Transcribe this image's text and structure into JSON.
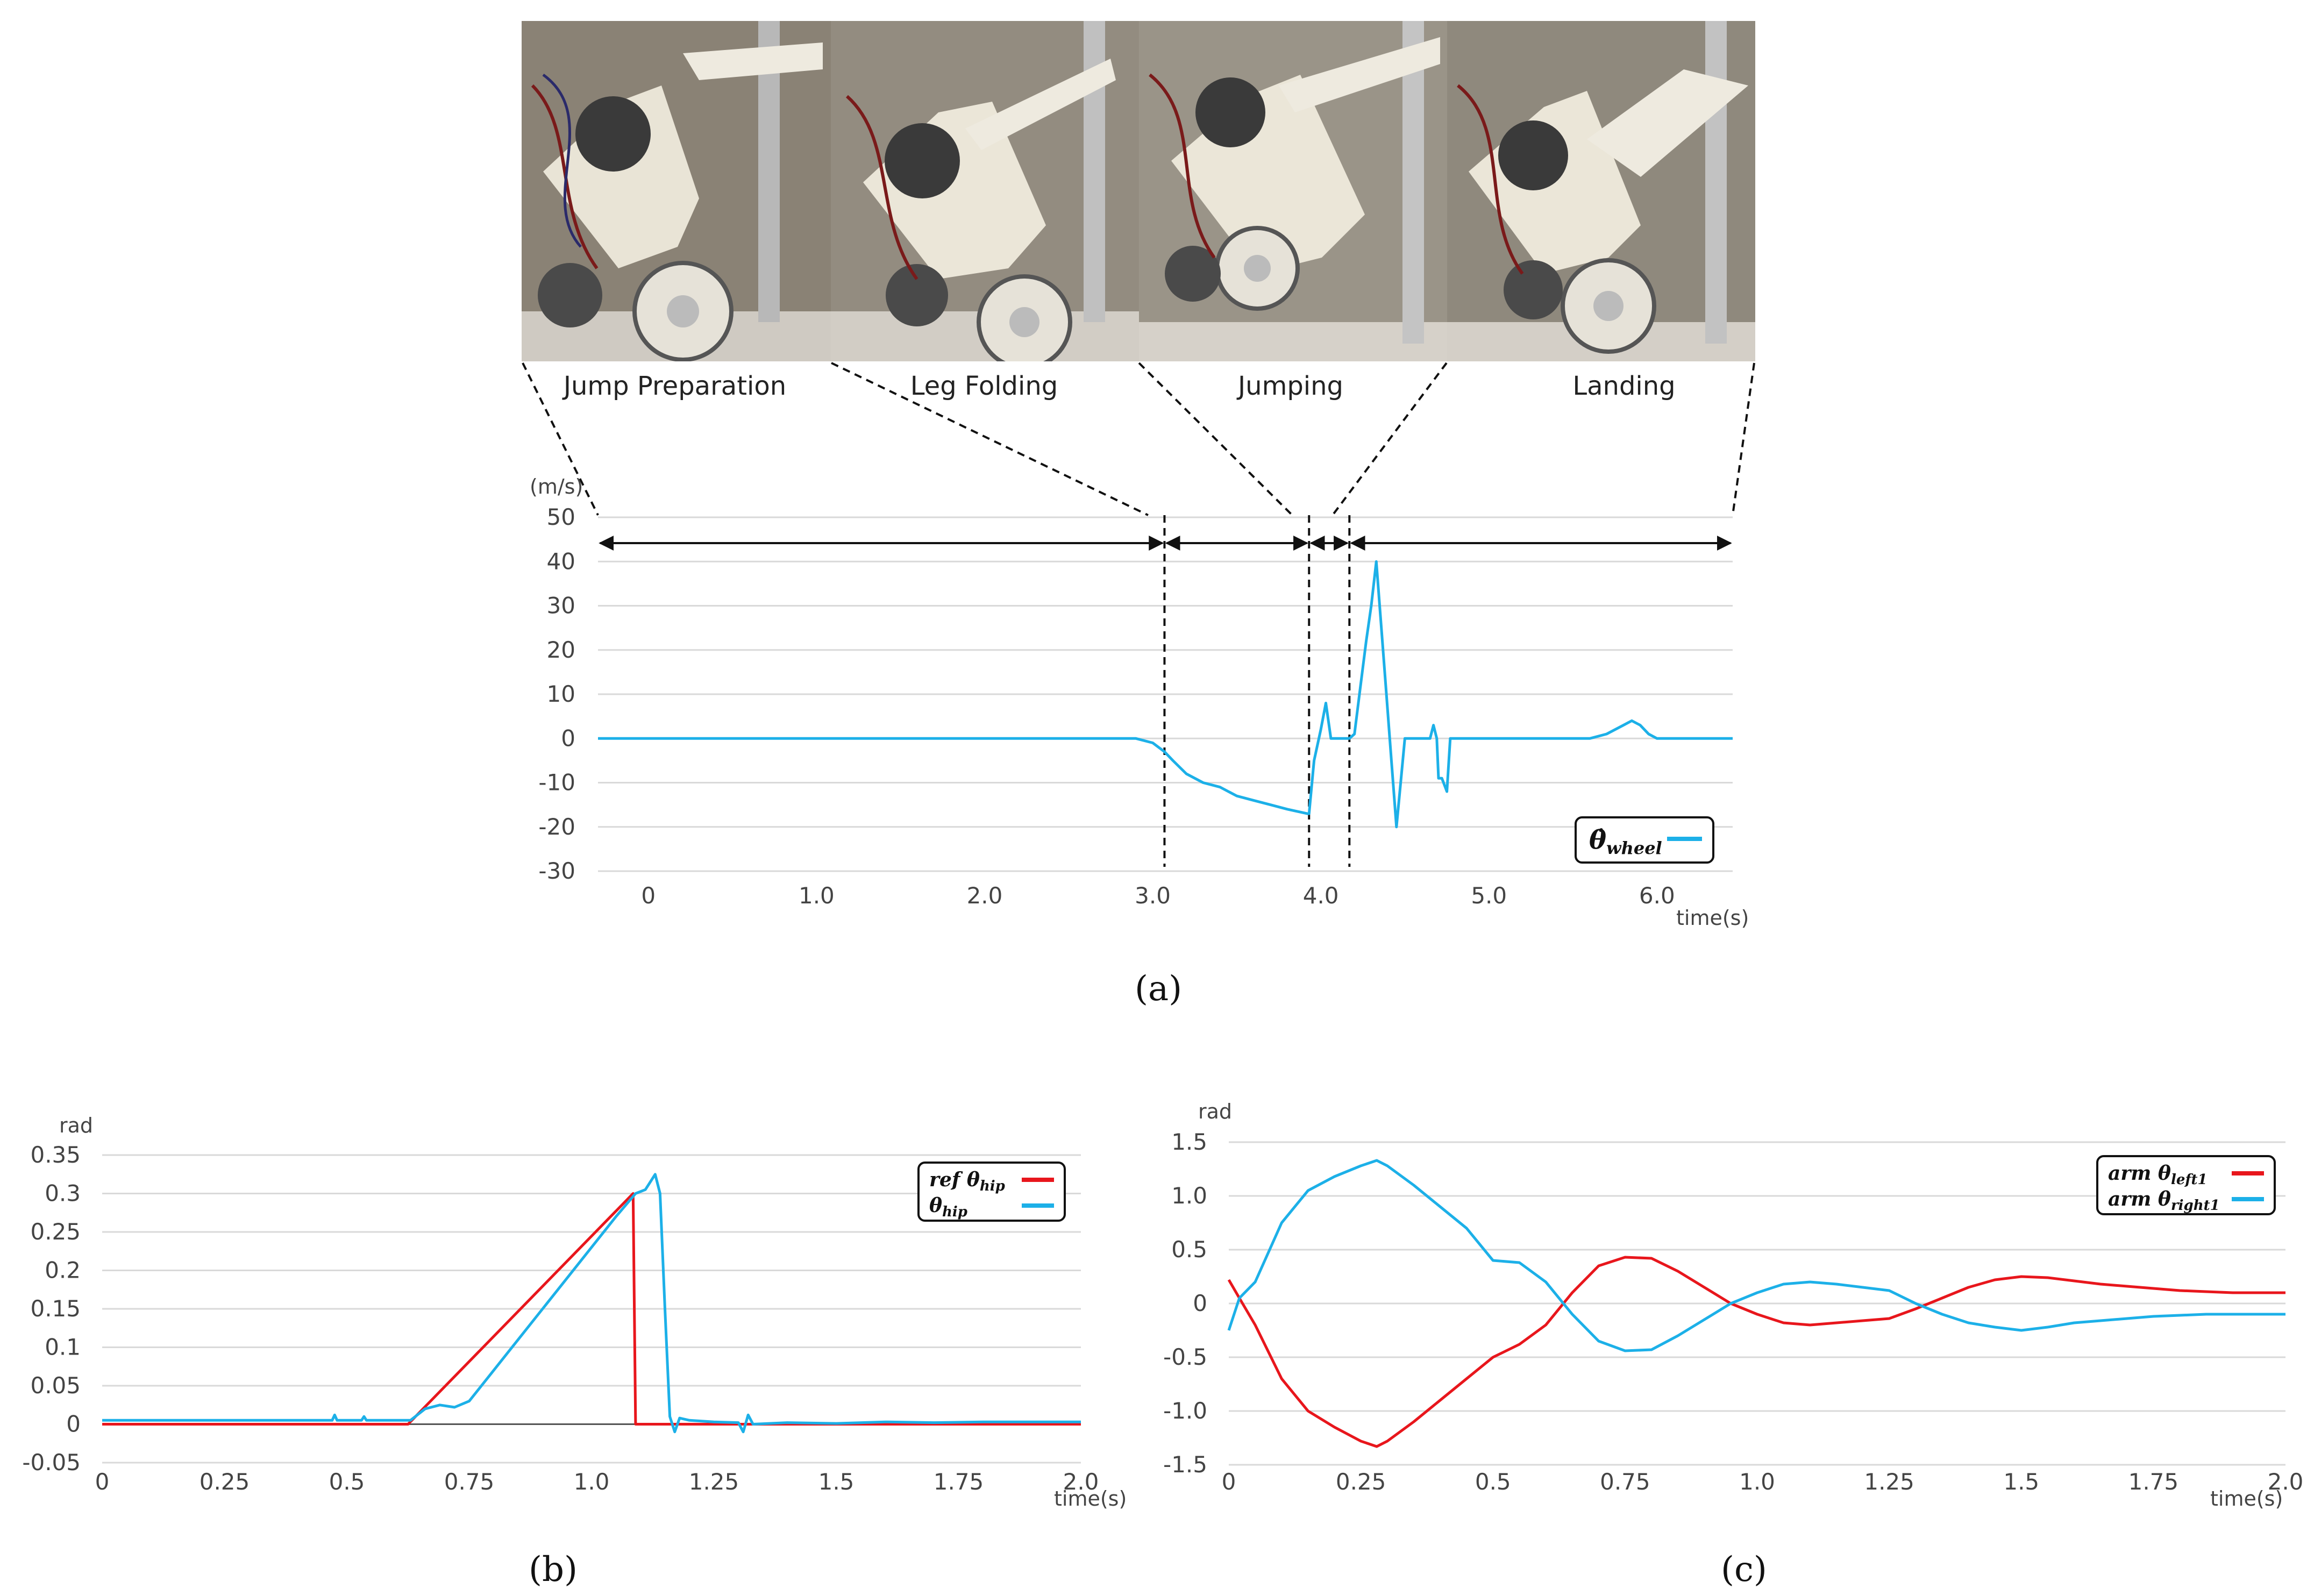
{
  "colors": {
    "blue": "#1cb0e8",
    "red": "#e8161c",
    "grid": "#d9d9d9",
    "axis": "#444444"
  },
  "stages": [
    {
      "label": "Jump Preparation"
    },
    {
      "label": "Leg Folding"
    },
    {
      "label": "Jumping"
    },
    {
      "label": "Landing"
    }
  ],
  "chart_data": [
    {
      "id": "a",
      "type": "line",
      "caption": "(a)",
      "ylabel": "(m/s)",
      "xlabel": "time(s)",
      "ylim": [
        -30,
        50
      ],
      "yticks": [
        "50",
        "40",
        "30",
        "20",
        "10",
        "0",
        "-10",
        "-20",
        "-30"
      ],
      "xticks": [
        "0",
        "1.0",
        "2.0",
        "3.0",
        "4.0",
        "5.0",
        "6.0"
      ],
      "xtick_values": [
        0,
        1,
        2,
        3,
        4,
        5,
        6
      ],
      "xlim": [
        -0.3,
        6.45
      ],
      "grid": true,
      "legend_position": "bottom-right",
      "phase_boundaries": [
        3.07,
        3.93,
        4.17
      ],
      "series": [
        {
          "name": "θ̇_wheel",
          "name_main": "θ̇",
          "name_sub": "wheel",
          "color": "#1cb0e8",
          "x": [
            -0.3,
            2.9,
            3.0,
            3.07,
            3.12,
            3.2,
            3.3,
            3.4,
            3.5,
            3.6,
            3.7,
            3.8,
            3.92,
            3.93,
            3.96,
            4.0,
            4.03,
            4.06,
            4.09,
            4.12,
            4.15,
            4.17,
            4.2,
            4.23,
            4.27,
            4.3,
            4.33,
            4.36,
            4.39,
            4.42,
            4.45,
            4.48,
            4.5,
            4.52,
            4.55,
            4.6,
            4.65,
            4.67,
            4.69,
            4.7,
            4.72,
            4.74,
            4.75,
            4.77,
            4.78,
            4.8,
            5.0,
            5.5,
            5.6,
            5.7,
            5.8,
            5.85,
            5.9,
            5.95,
            6.0,
            6.1,
            6.45
          ],
          "y": [
            0,
            0,
            -1,
            -3,
            -5,
            -8,
            -10,
            -11,
            -13,
            -14,
            -15,
            -16,
            -17,
            -17,
            -5,
            2,
            8,
            0,
            0,
            0,
            0,
            0,
            1,
            10,
            22,
            30,
            40,
            25,
            10,
            -5,
            -20,
            -8,
            0,
            0,
            0,
            0,
            0,
            3,
            0,
            -9,
            -9,
            -11,
            -12,
            0,
            0,
            0,
            0,
            0,
            0,
            1,
            3,
            4,
            3,
            1,
            0,
            0,
            0
          ]
        }
      ]
    },
    {
      "id": "b",
      "type": "line",
      "caption": "(b)",
      "ylabel": "rad",
      "xlabel": "time(s)",
      "ylim": [
        -0.05,
        0.35
      ],
      "yticks": [
        "0.35",
        "0.3",
        "0.25",
        "0.2",
        "0.15",
        "0.1",
        "0.05",
        "0",
        "-0.05"
      ],
      "xticks": [
        "0",
        "0.25",
        "0.5",
        "0.75",
        "1.0",
        "1.25",
        "1.5",
        "1.75",
        "2.0"
      ],
      "xlim": [
        0,
        2.0
      ],
      "grid": true,
      "legend_position": "top-right",
      "series": [
        {
          "name": "ref θ_hip",
          "name_main": "ref θ",
          "name_sub": "hip",
          "color": "#e8161c",
          "x": [
            0,
            0.625,
            1.085,
            1.09,
            2.0
          ],
          "y": [
            0,
            0,
            0.3,
            0,
            0
          ]
        },
        {
          "name": "θ_hip",
          "name_main": "θ",
          "name_sub": "hip",
          "color": "#1cb0e8",
          "x": [
            0,
            0.47,
            0.475,
            0.48,
            0.53,
            0.535,
            0.54,
            0.63,
            0.66,
            0.69,
            0.72,
            0.75,
            0.8,
            0.85,
            0.9,
            0.95,
            1.0,
            1.05,
            1.09,
            1.11,
            1.12,
            1.13,
            1.14,
            1.15,
            1.16,
            1.17,
            1.18,
            1.2,
            1.25,
            1.3,
            1.31,
            1.32,
            1.33,
            1.4,
            1.5,
            1.6,
            1.7,
            1.8,
            2.0
          ],
          "y": [
            0.005,
            0.005,
            0.012,
            0.005,
            0.005,
            0.01,
            0.005,
            0.005,
            0.02,
            0.025,
            0.022,
            0.03,
            0.07,
            0.11,
            0.15,
            0.19,
            0.23,
            0.27,
            0.3,
            0.305,
            0.315,
            0.325,
            0.3,
            0.15,
            0.01,
            -0.01,
            0.008,
            0.005,
            0.003,
            0.002,
            -0.01,
            0.012,
            0.0,
            0.002,
            0.001,
            0.003,
            0.002,
            0.003,
            0.003
          ]
        }
      ]
    },
    {
      "id": "c",
      "type": "line",
      "caption": "(c)",
      "ylabel": "rad",
      "xlabel": "time(s)",
      "ylim": [
        -1.5,
        1.5
      ],
      "yticks": [
        "1.5",
        "1.0",
        "0.5",
        "0",
        "-0.5",
        "-1.0",
        "-1.5"
      ],
      "xticks": [
        "0",
        "0.25",
        "0.5",
        "0.75",
        "1.0",
        "1.25",
        "1.5",
        "1.75",
        "2.0"
      ],
      "xlim": [
        0,
        2.0
      ],
      "grid": true,
      "legend_position": "top-right",
      "series": [
        {
          "name": "arm θ_left1",
          "name_main": "arm θ",
          "name_sub": "left1",
          "color": "#e8161c",
          "x": [
            0,
            0.02,
            0.05,
            0.1,
            0.15,
            0.2,
            0.25,
            0.28,
            0.3,
            0.35,
            0.4,
            0.45,
            0.5,
            0.55,
            0.6,
            0.65,
            0.7,
            0.75,
            0.8,
            0.85,
            0.9,
            0.95,
            1.0,
            1.05,
            1.1,
            1.15,
            1.2,
            1.25,
            1.3,
            1.35,
            1.4,
            1.45,
            1.5,
            1.55,
            1.6,
            1.65,
            1.7,
            1.75,
            1.8,
            1.85,
            1.9,
            1.95,
            2.0
          ],
          "y": [
            0.22,
            0.05,
            -0.2,
            -0.7,
            -1.0,
            -1.15,
            -1.28,
            -1.33,
            -1.28,
            -1.1,
            -0.9,
            -0.7,
            -0.5,
            -0.38,
            -0.2,
            0.1,
            0.35,
            0.43,
            0.42,
            0.3,
            0.15,
            0.0,
            -0.1,
            -0.18,
            -0.2,
            -0.18,
            -0.16,
            -0.14,
            -0.05,
            0.05,
            0.15,
            0.22,
            0.25,
            0.24,
            0.21,
            0.18,
            0.16,
            0.14,
            0.12,
            0.11,
            0.1,
            0.1,
            0.1
          ]
        },
        {
          "name": "arm θ_right1",
          "name_main": "arm θ",
          "name_sub": "right1",
          "color": "#1cb0e8",
          "x": [
            0,
            0.02,
            0.05,
            0.1,
            0.15,
            0.2,
            0.25,
            0.28,
            0.3,
            0.35,
            0.4,
            0.45,
            0.5,
            0.55,
            0.6,
            0.65,
            0.7,
            0.75,
            0.8,
            0.85,
            0.9,
            0.95,
            1.0,
            1.05,
            1.1,
            1.15,
            1.2,
            1.25,
            1.3,
            1.35,
            1.4,
            1.45,
            1.5,
            1.55,
            1.6,
            1.65,
            1.7,
            1.75,
            1.8,
            1.85,
            1.9,
            1.95,
            2.0
          ],
          "y": [
            -0.25,
            0.05,
            0.2,
            0.75,
            1.05,
            1.18,
            1.28,
            1.33,
            1.28,
            1.1,
            0.9,
            0.7,
            0.4,
            0.38,
            0.2,
            -0.1,
            -0.35,
            -0.44,
            -0.43,
            -0.3,
            -0.15,
            0.0,
            0.1,
            0.18,
            0.2,
            0.18,
            0.15,
            0.12,
            0.0,
            -0.1,
            -0.18,
            -0.22,
            -0.25,
            -0.22,
            -0.18,
            -0.16,
            -0.14,
            -0.12,
            -0.11,
            -0.1,
            -0.1,
            -0.1,
            -0.1
          ]
        }
      ]
    }
  ]
}
